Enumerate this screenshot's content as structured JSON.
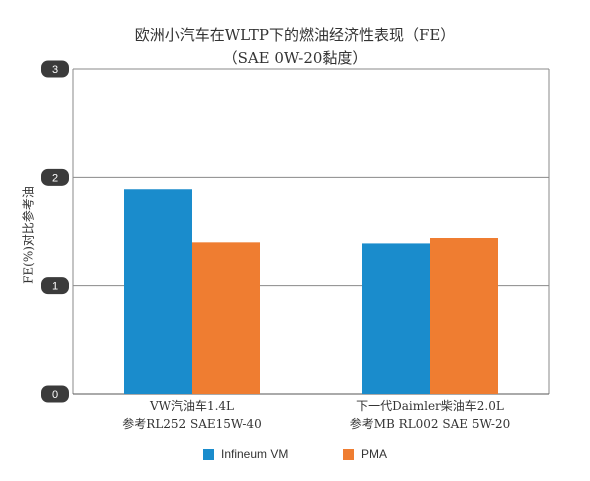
{
  "chart_data": {
    "type": "bar",
    "title": "欧洲小汽车在WLTP下的燃油经济性表现（FE）",
    "subtitle": "（SAE 0W-20黏度）",
    "ylabel": "FE(%)对比参考油",
    "xlabel": "",
    "ylim": [
      0,
      3
    ],
    "yticks": [
      "0",
      "1",
      "2",
      "3"
    ],
    "grid": true,
    "legend_position": "bottom",
    "categories": [
      {
        "line1": "VW汽油车1.4L",
        "line2": "参考RL252 SAE15W-40"
      },
      {
        "line1": "下一代Daimler柴油车2.0L",
        "line2": "参考MB RL002 SAE 5W-20"
      }
    ],
    "series": [
      {
        "name": "Infineum VM",
        "color": "#1a8ccc",
        "values": [
          1.89,
          1.39
        ]
      },
      {
        "name": "PMA",
        "color": "#ef7d31",
        "values": [
          1.4,
          1.44
        ]
      }
    ]
  }
}
